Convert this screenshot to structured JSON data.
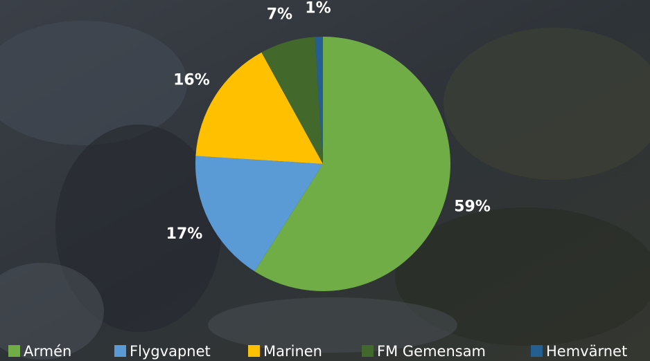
{
  "chart_data": {
    "type": "pie",
    "categories": [
      "Armén",
      "Flygvapnet",
      "Marinen",
      "FM Gemensam",
      "Hemvärnet"
    ],
    "values": [
      59,
      17,
      16,
      7,
      1
    ],
    "value_labels": [
      "59%",
      "17%",
      "16%",
      "7%",
      "1%"
    ],
    "colors": [
      "#70ad47",
      "#5b9bd5",
      "#ffc000",
      "#43682b",
      "#255e91"
    ],
    "legend": "bottom"
  }
}
